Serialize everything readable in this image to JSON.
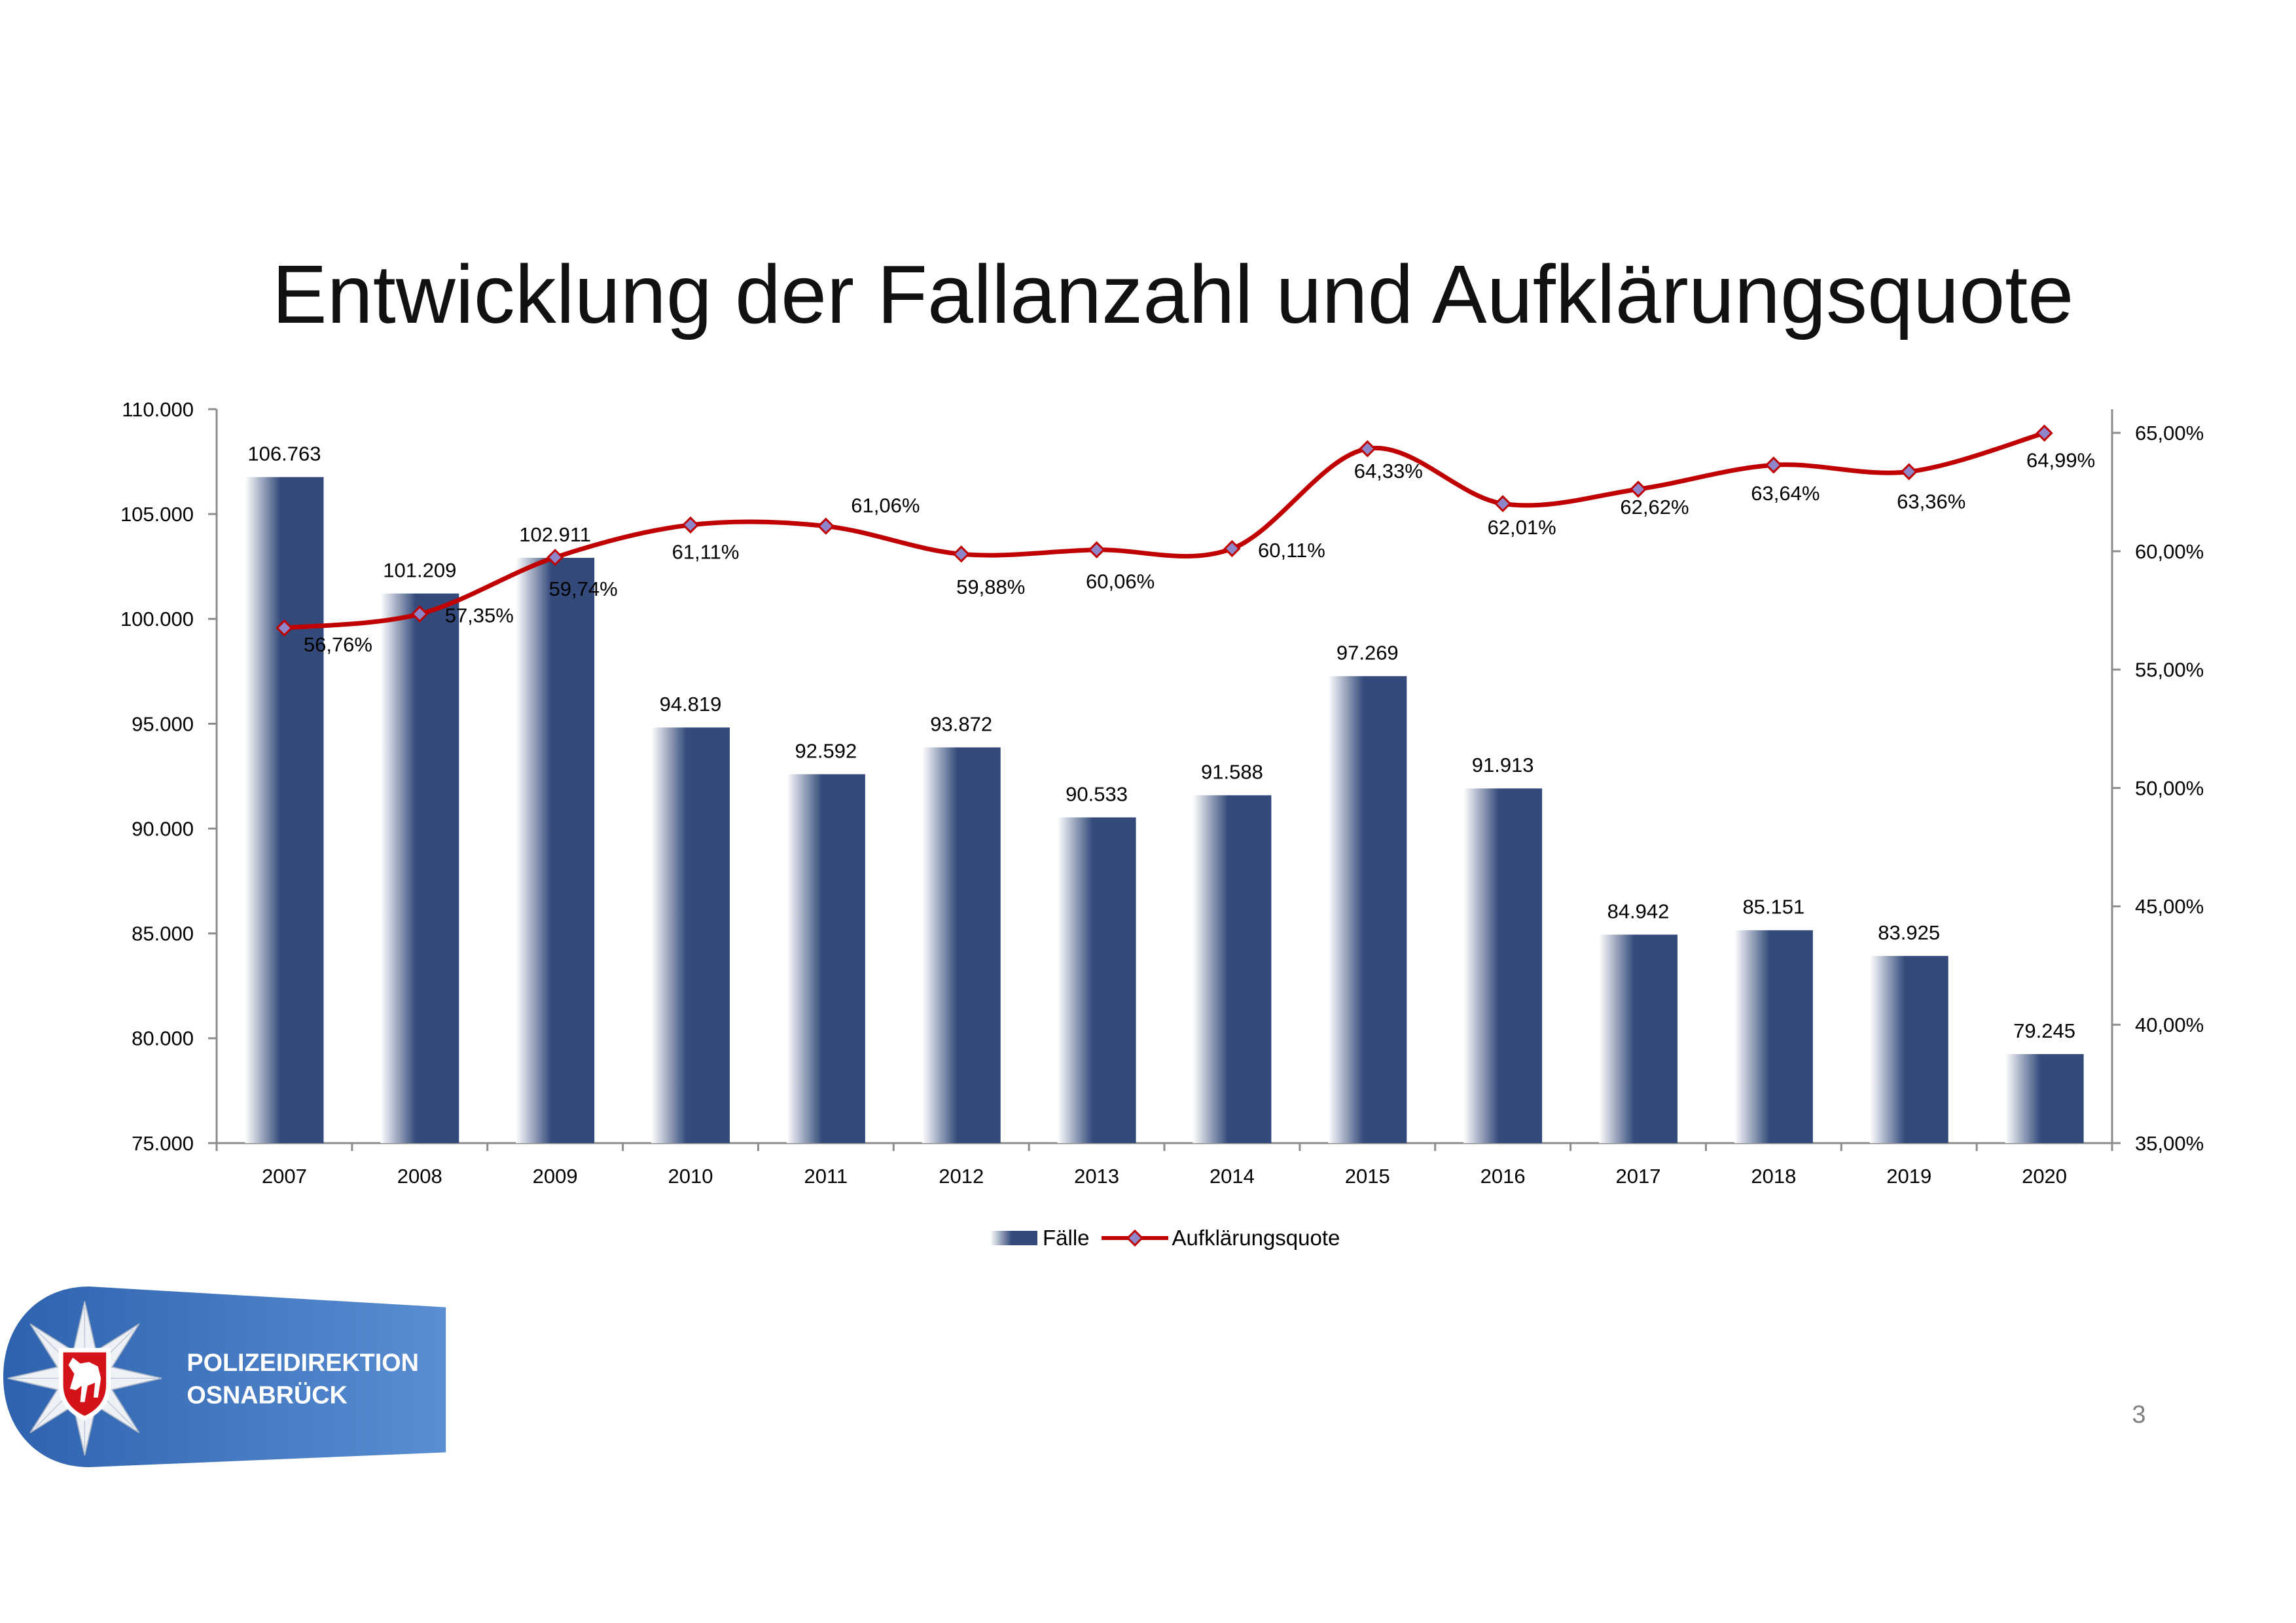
{
  "chart_data": {
    "type": "bar",
    "title": "Entwicklung der Fallanzahl und Aufklärungsquote",
    "categories": [
      "2007",
      "2008",
      "2009",
      "2010",
      "2011",
      "2012",
      "2013",
      "2014",
      "2015",
      "2016",
      "2017",
      "2018",
      "2019",
      "2020"
    ],
    "series": [
      {
        "name": "Fälle",
        "type": "bar",
        "y_axis": "left",
        "values": [
          106763,
          101209,
          102911,
          94819,
          92592,
          93872,
          90533,
          91588,
          97269,
          91913,
          84942,
          85151,
          83925,
          79245
        ]
      },
      {
        "name": "Aufklärungsquote",
        "type": "line",
        "y_axis": "right",
        "smooth": true,
        "marker": "diamond",
        "values": [
          56.76,
          57.35,
          59.74,
          61.11,
          61.06,
          59.88,
          60.06,
          60.11,
          64.33,
          62.01,
          62.62,
          63.64,
          63.36,
          64.99
        ]
      }
    ],
    "ylim": [
      75000,
      110000
    ],
    "y_ticks": [
      75000,
      80000,
      85000,
      90000,
      95000,
      100000,
      105000,
      110000
    ],
    "y2lim": [
      35,
      66
    ],
    "y2_ticks": [
      35,
      40,
      45,
      50,
      55,
      60,
      65
    ],
    "data_labels": true,
    "grid": false,
    "legend": "bottom"
  },
  "slide": {
    "page_number": "3"
  },
  "logo": {
    "icon": "police-star-shield-horse-icon",
    "line1": "POLIZEIDIREKTION",
    "line2": "OSNABRÜCK"
  },
  "colors": {
    "bar": "#334a7a",
    "line": "#c00000",
    "marker_fill": "#8f86c9",
    "axis": "#8c8c8c",
    "logo_blue": "#3a6cb4",
    "shield_red": "#d3121a"
  }
}
